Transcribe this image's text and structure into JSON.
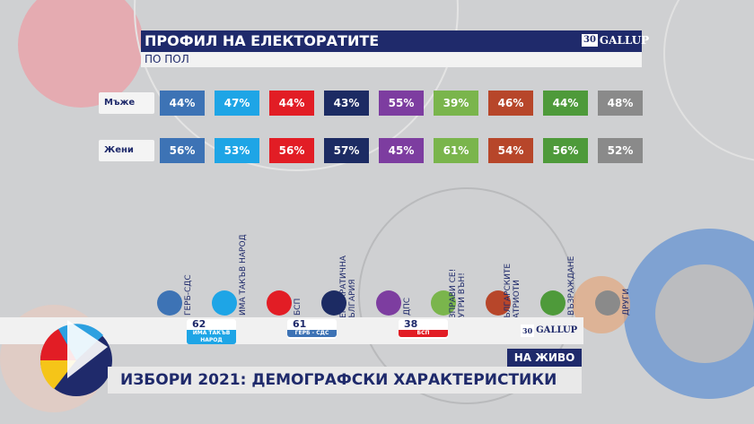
{
  "header": {
    "title": "ПРОФИЛ НА ЕЛЕКТОРАТИТЕ",
    "subtitle": "ПО ПОЛ"
  },
  "logo": {
    "number": "30",
    "brand": "GALLUP"
  },
  "chart_data": {
    "type": "table",
    "categories": [
      "ГЕРБ-СДС",
      "ИМА ТАКЪВ НАРОД",
      "БСП",
      "ДЕМОКРАТИЧНА БЪЛГАРИЯ",
      "ДПС",
      "ИЗПРАВИ СЕ! МУТРИ ВЪН!",
      "БЪЛГАРСКИТЕ ПАТРИОТИ",
      "ВЪЗРАЖДАНЕ",
      "ДРУГИ"
    ],
    "colors": [
      "#3d73b5",
      "#1ea5e6",
      "#e21d25",
      "#1c2b63",
      "#7d3da0",
      "#7ab54c",
      "#b7462a",
      "#4e9a3a",
      "#8a8a8a"
    ],
    "series": [
      {
        "name": "Мъже",
        "values": [
          "44%",
          "47%",
          "44%",
          "43%",
          "55%",
          "39%",
          "46%",
          "44%",
          "48%"
        ]
      },
      {
        "name": "Жени",
        "values": [
          "56%",
          "53%",
          "56%",
          "57%",
          "45%",
          "61%",
          "54%",
          "56%",
          "52%"
        ]
      }
    ]
  },
  "ticker": {
    "items": [
      {
        "seats": "62",
        "name": "ИМА ТАКЪВ НАРОД",
        "color": "#1ea5e6"
      },
      {
        "seats": "61",
        "name": "ГЕРБ - СДС",
        "color": "#3d73b5"
      },
      {
        "seats": "38",
        "name": "БСП",
        "color": "#e21d25"
      }
    ]
  },
  "bottom": {
    "title": "ИЗБОРИ 2021: ДЕМОГРАФСКИ ХАРАКТЕРИСТИКИ",
    "live": "НА ЖИВО"
  }
}
